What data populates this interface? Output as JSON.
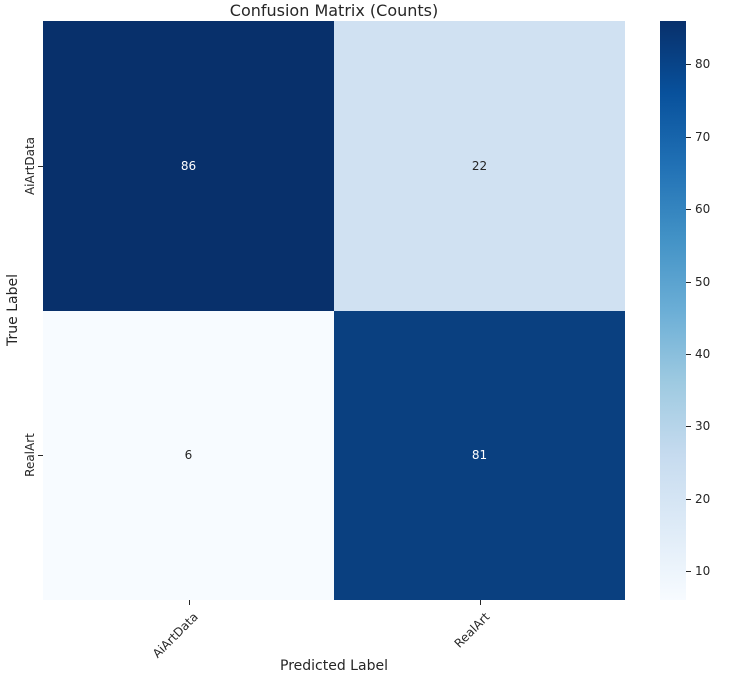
{
  "title": "Confusion Matrix (Counts)",
  "chart_data": {
    "type": "heatmap",
    "title": "Confusion Matrix (Counts)",
    "xlabel": "Predicted Label",
    "ylabel": "True Label",
    "x_tick_labels": [
      "AiArtData",
      "RealArt"
    ],
    "y_tick_labels": [
      "AiArtData",
      "RealArt"
    ],
    "matrix": [
      [
        86,
        22
      ],
      [
        6,
        81
      ]
    ],
    "colormap": "Blues",
    "vmin": 6,
    "vmax": 86,
    "colorbar_ticks": [
      10,
      20,
      30,
      40,
      50,
      60,
      70,
      80
    ],
    "colorbar_position": "right",
    "grid": false,
    "cell_colors": [
      [
        "#08306b",
        "#d0e1f2"
      ],
      [
        "#f7fbff",
        "#0a4080"
      ]
    ],
    "cell_text_colors": [
      [
        "#ffffff",
        "#262626"
      ],
      [
        "#262626",
        "#ffffff"
      ]
    ],
    "gradient_stops": [
      {
        "pos": 0.0,
        "color": "#f7fbff"
      },
      {
        "pos": 0.125,
        "color": "#deebf7"
      },
      {
        "pos": 0.25,
        "color": "#c6dbef"
      },
      {
        "pos": 0.375,
        "color": "#9ecae1"
      },
      {
        "pos": 0.5,
        "color": "#6baed6"
      },
      {
        "pos": 0.625,
        "color": "#4292c6"
      },
      {
        "pos": 0.75,
        "color": "#2171b5"
      },
      {
        "pos": 0.875,
        "color": "#08519c"
      },
      {
        "pos": 1.0,
        "color": "#08306b"
      }
    ],
    "text_color": "#262626",
    "background_color": "#ffffff"
  }
}
